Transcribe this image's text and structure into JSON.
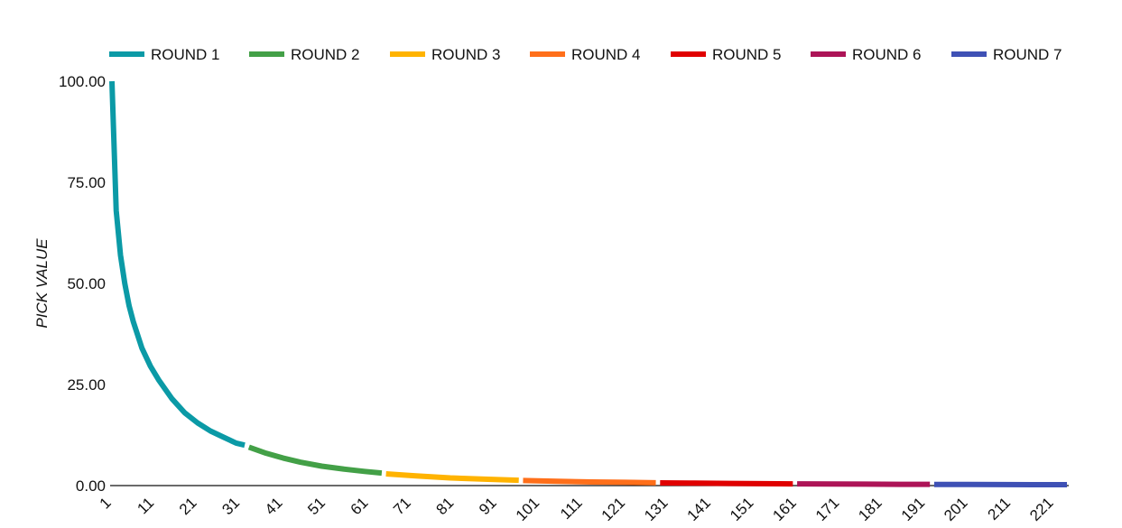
{
  "chart_data": {
    "type": "line",
    "title": "",
    "xlabel": "",
    "ylabel": "PICK VALUE",
    "ylim": [
      0,
      100
    ],
    "xlim": [
      1,
      224
    ],
    "y_ticks": [
      "100.00",
      "75.00",
      "50.00",
      "25.00",
      "0.00"
    ],
    "y_tick_values": [
      100,
      75,
      50,
      25,
      0
    ],
    "x_ticks": [
      "1",
      "11",
      "21",
      "31",
      "41",
      "51",
      "61",
      "71",
      "81",
      "91",
      "101",
      "111",
      "121",
      "131",
      "141",
      "151",
      "161",
      "171",
      "181",
      "191",
      "201",
      "211",
      "221"
    ],
    "x_tick_values": [
      1,
      11,
      21,
      31,
      41,
      51,
      61,
      71,
      81,
      91,
      101,
      111,
      121,
      131,
      141,
      151,
      161,
      171,
      181,
      191,
      201,
      211,
      221
    ],
    "legend_position": "top",
    "grid": false,
    "series": [
      {
        "name": "ROUND 1",
        "color": "#0b9aa6",
        "x_range": [
          1,
          32
        ],
        "x": [
          1,
          2,
          3,
          4,
          5,
          6,
          8,
          10,
          12,
          15,
          18,
          21,
          24,
          27,
          30,
          32
        ],
        "y": [
          100,
          68,
          57,
          50,
          44.5,
          40.5,
          34,
          29.5,
          26,
          21.5,
          18,
          15.5,
          13.5,
          12,
          10.5,
          10
        ]
      },
      {
        "name": "ROUND 2",
        "color": "#43a047",
        "x_range": [
          33,
          64
        ],
        "x": [
          33,
          37,
          41,
          45,
          50,
          55,
          60,
          64
        ],
        "y": [
          9.5,
          8,
          6.8,
          5.8,
          4.8,
          4.1,
          3.5,
          3.1
        ]
      },
      {
        "name": "ROUND 3",
        "color": "#ffb300",
        "x_range": [
          65,
          96
        ],
        "x": [
          65,
          72,
          80,
          88,
          96
        ],
        "y": [
          2.9,
          2.4,
          1.9,
          1.6,
          1.3
        ]
      },
      {
        "name": "ROUND 4",
        "color": "#ff6f1a",
        "x_range": [
          97,
          128
        ],
        "x": [
          97,
          105,
          113,
          121,
          128
        ],
        "y": [
          1.25,
          1.05,
          0.9,
          0.8,
          0.7
        ]
      },
      {
        "name": "ROUND 5",
        "color": "#e00000",
        "x_range": [
          129,
          160
        ],
        "x": [
          129,
          137,
          145,
          153,
          160
        ],
        "y": [
          0.68,
          0.6,
          0.53,
          0.47,
          0.43
        ]
      },
      {
        "name": "ROUND 6",
        "color": "#ad1457",
        "x_range": [
          161,
          192
        ],
        "x": [
          161,
          169,
          177,
          185,
          192
        ],
        "y": [
          0.42,
          0.38,
          0.35,
          0.32,
          0.3
        ]
      },
      {
        "name": "ROUND 7",
        "color": "#3f51b5",
        "x_range": [
          193,
          224
        ],
        "x": [
          193,
          201,
          209,
          217,
          224
        ],
        "y": [
          0.29,
          0.27,
          0.25,
          0.23,
          0.22
        ]
      }
    ]
  }
}
